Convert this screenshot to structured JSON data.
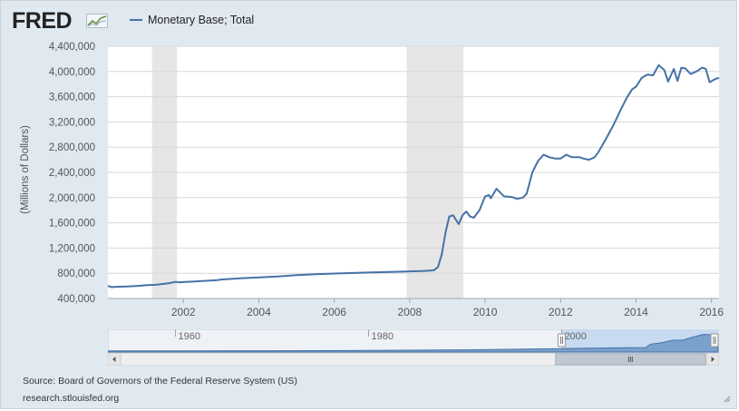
{
  "logo": {
    "text": "FRED"
  },
  "source_text": "Source: Board of Governors of the Federal Reserve System (US)",
  "site_text": "research.stlouisfed.org",
  "chart_data": {
    "type": "line",
    "title": "",
    "xlabel": "",
    "ylabel": "(Millions of Dollars)",
    "xlim": [
      2000.0,
      2016.2
    ],
    "ylim": [
      400000,
      4400000
    ],
    "yticks": [
      400000,
      800000,
      1200000,
      1600000,
      2000000,
      2400000,
      2800000,
      3200000,
      3600000,
      4000000,
      4400000
    ],
    "ytick_labels": [
      "400,000",
      "800,000",
      "1,200,000",
      "1,600,000",
      "2,000,000",
      "2,400,000",
      "2,800,000",
      "3,200,000",
      "3,600,000",
      "4,000,000",
      "4,400,000"
    ],
    "xticks": [
      2002,
      2004,
      2006,
      2008,
      2010,
      2012,
      2014,
      2016
    ],
    "xtick_labels": [
      "2002",
      "2004",
      "2006",
      "2008",
      "2010",
      "2012",
      "2014",
      "2016"
    ],
    "grid": true,
    "legend_position": "top-left",
    "line_color": "#4572a7",
    "recession_color": "#e6e6e6",
    "recessions": [
      [
        2001.17,
        2001.83
      ],
      [
        2007.92,
        2009.42
      ]
    ],
    "series": [
      {
        "name": "Monetary Base; Total",
        "x": [
          2000.0,
          2000.1,
          2000.2,
          2000.5,
          2000.8,
          2001.0,
          2001.3,
          2001.6,
          2001.8,
          2001.9,
          2002.0,
          2002.3,
          2002.6,
          2002.9,
          2003.0,
          2003.5,
          2004.0,
          2004.5,
          2005.0,
          2005.5,
          2006.0,
          2006.5,
          2007.0,
          2007.5,
          2008.0,
          2008.3,
          2008.5,
          2008.65,
          2008.75,
          2008.85,
          2008.95,
          2009.05,
          2009.15,
          2009.3,
          2009.4,
          2009.5,
          2009.6,
          2009.7,
          2009.85,
          2010.0,
          2010.1,
          2010.15,
          2010.3,
          2010.5,
          2010.7,
          2010.85,
          2011.0,
          2011.1,
          2011.25,
          2011.4,
          2011.55,
          2011.7,
          2011.85,
          2012.0,
          2012.15,
          2012.3,
          2012.5,
          2012.6,
          2012.75,
          2012.9,
          2013.0,
          2013.2,
          2013.4,
          2013.6,
          2013.75,
          2013.9,
          2014.0,
          2014.15,
          2014.3,
          2014.45,
          2014.6,
          2014.75,
          2014.85,
          2015.0,
          2015.1,
          2015.2,
          2015.3,
          2015.45,
          2015.6,
          2015.75,
          2015.85,
          2015.95,
          2016.1,
          2016.2
        ],
        "values": [
          600000,
          580000,
          585000,
          590000,
          600000,
          610000,
          620000,
          640000,
          665000,
          655000,
          660000,
          670000,
          680000,
          690000,
          700000,
          720000,
          735000,
          750000,
          770000,
          785000,
          795000,
          805000,
          815000,
          820000,
          830000,
          835000,
          840000,
          850000,
          900000,
          1100000,
          1450000,
          1700000,
          1720000,
          1580000,
          1720000,
          1780000,
          1700000,
          1680000,
          1800000,
          2020000,
          2040000,
          1990000,
          2140000,
          2020000,
          2010000,
          1980000,
          2000000,
          2060000,
          2400000,
          2580000,
          2680000,
          2640000,
          2620000,
          2620000,
          2680000,
          2640000,
          2640000,
          2620000,
          2600000,
          2640000,
          2720000,
          2930000,
          3150000,
          3400000,
          3580000,
          3720000,
          3760000,
          3900000,
          3950000,
          3940000,
          4100000,
          4020000,
          3840000,
          4040000,
          3850000,
          4060000,
          4050000,
          3960000,
          4000000,
          4060000,
          4040000,
          3830000,
          3880000,
          3900000
        ]
      }
    ]
  },
  "navigator": {
    "labels": [
      "1960",
      "1980",
      "2000"
    ],
    "label_years": [
      1960,
      1980,
      2000
    ],
    "range_years": [
      1953,
      2016.3
    ],
    "selected_range": [
      2000.0,
      2016.2
    ],
    "series": {
      "x": [
        1953,
        1960,
        1970,
        1980,
        1990,
        2000,
        2004,
        2007,
        2008.7,
        2009.2,
        2010.3,
        2011.5,
        2012.5,
        2013.6,
        2014.7,
        2015.5,
        2016.2
      ],
      "values": [
        50000,
        60000,
        90000,
        160000,
        300000,
        600000,
        740000,
        820000,
        860000,
        1700000,
        2000000,
        2650000,
        2640000,
        3400000,
        4070000,
        3950000,
        3900000
      ]
    }
  }
}
